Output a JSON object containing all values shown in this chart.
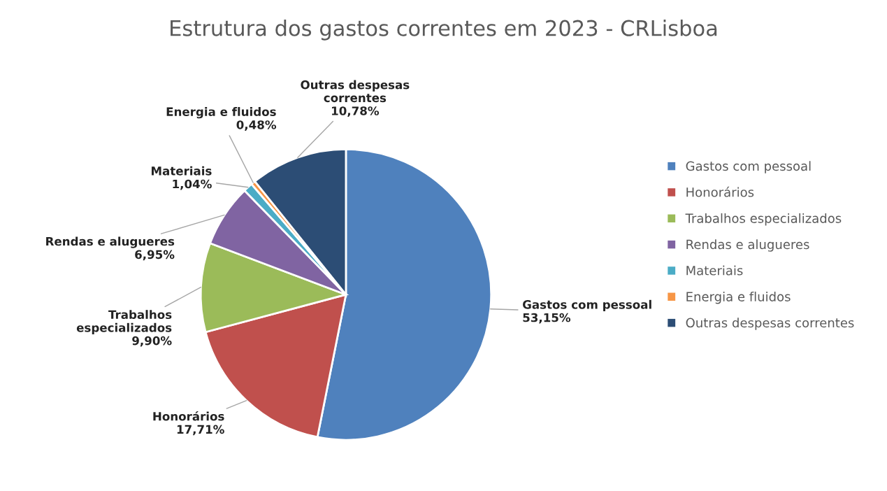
{
  "chart_data": {
    "type": "pie",
    "title": "Estrutura dos gastos correntes em 2023 - CRLisboa",
    "categories": [
      "Gastos com pessoal",
      "Honorários",
      "Trabalhos especializados",
      "Rendas e alugueres",
      "Materiais",
      "Energia e fluidos",
      "Outras despesas correntes"
    ],
    "values": [
      53.15,
      17.71,
      9.9,
      6.95,
      1.04,
      0.48,
      10.78
    ],
    "colors": [
      "#4f81bd",
      "#c0504d",
      "#9bbb59",
      "#8064a2",
      "#4bacc6",
      "#f79646",
      "#2c4d75"
    ],
    "value_labels": [
      "53,15%",
      "17,71%",
      "9,90%",
      "6,95%",
      "1,04%",
      "0,48%",
      "10,78%"
    ],
    "legend": "right"
  }
}
